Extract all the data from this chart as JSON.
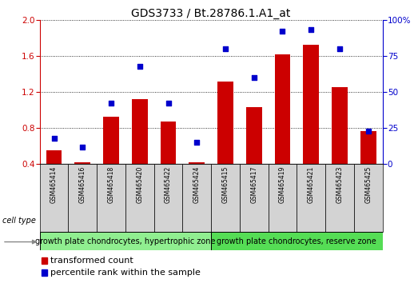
{
  "title": "GDS3733 / Bt.28786.1.A1_at",
  "samples": [
    "GSM465414",
    "GSM465416",
    "GSM465418",
    "GSM465420",
    "GSM465422",
    "GSM465424",
    "GSM465415",
    "GSM465417",
    "GSM465419",
    "GSM465421",
    "GSM465423",
    "GSM465425"
  ],
  "bar_values": [
    0.55,
    0.42,
    0.93,
    1.12,
    0.87,
    0.42,
    1.32,
    1.03,
    1.62,
    1.72,
    1.25,
    0.77
  ],
  "dot_values_pct": [
    18,
    12,
    42,
    68,
    42,
    15,
    80,
    60,
    92,
    93,
    80,
    23
  ],
  "bar_color": "#cc0000",
  "dot_color": "#0000cc",
  "ylim_left": [
    0.4,
    2.0
  ],
  "ylim_right": [
    0,
    100
  ],
  "yticks_left": [
    0.4,
    0.8,
    1.2,
    1.6,
    2.0
  ],
  "yticks_right": [
    0,
    25,
    50,
    75,
    100
  ],
  "yticklabels_right": [
    "0",
    "25",
    "50",
    "75",
    "100%"
  ],
  "group1_label": "growth plate chondrocytes, hypertrophic zone",
  "group2_label": "growth plate chondrocytes, reserve zone",
  "cell_type_label": "cell type",
  "legend_bar_label": "transformed count",
  "legend_dot_label": "percentile rank within the sample",
  "bar_width": 0.55,
  "group1_bg": "#90ee90",
  "group2_bg": "#55dd55",
  "sample_label_bg": "#d3d3d3",
  "title_fontsize": 10,
  "tick_fontsize": 7.5,
  "label_fontsize": 8,
  "group_fontsize": 7,
  "sample_fontsize": 5.5
}
